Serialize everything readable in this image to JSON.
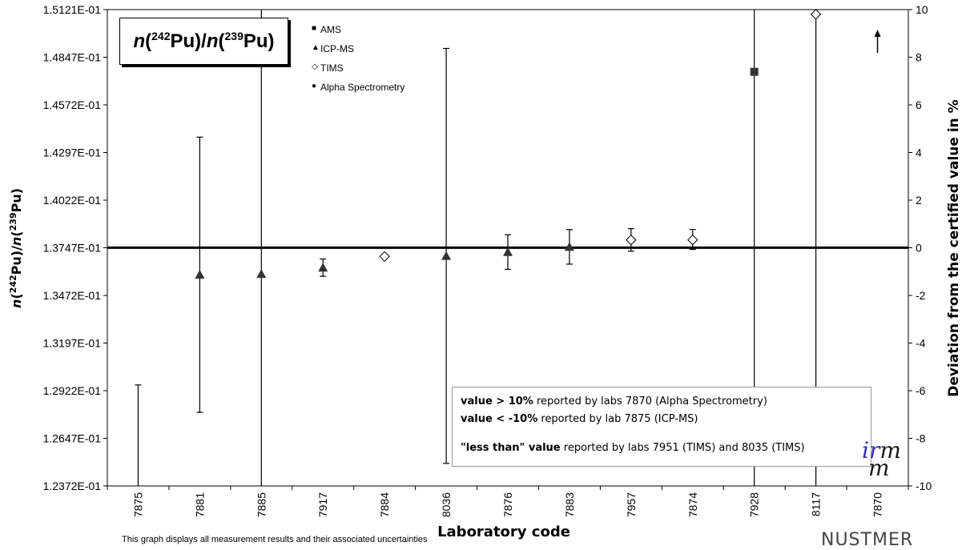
{
  "chart_data": {
    "type": "scatter",
    "title_parts": {
      "n1": "n",
      "o1": "(",
      "iso1": "242",
      "el1": "Pu)/",
      "n2": "n",
      "o2": "(",
      "iso2": "239",
      "el2": "Pu)"
    },
    "xlabel": "Laboratory code",
    "ylabel_left_parts": {
      "n1": "n",
      "o1": "(",
      "iso1": "242",
      "el1": "Pu)/",
      "n2": "n",
      "o2": "(",
      "iso2": "239",
      "el2": "Pu)"
    },
    "ylabel_right": "Deviation from the certified value in %",
    "y_left_ticks": [
      "1.2372E-01",
      "1.2647E-01",
      "1.2922E-01",
      "1.3197E-01",
      "1.3472E-01",
      "1.3747E-01",
      "1.4022E-01",
      "1.4297E-01",
      "1.4572E-01",
      "1.4847E-01",
      "1.5121E-01"
    ],
    "y_right_ticks": [
      "-10",
      "-8",
      "-6",
      "-4",
      "-2",
      "0",
      "2",
      "4",
      "6",
      "8",
      "10"
    ],
    "ylim_left": [
      0.12372,
      0.15121
    ],
    "ylim_right": [
      -10,
      10
    ],
    "reference_value": 0.13747,
    "categories": [
      "7875",
      "7881",
      "7885",
      "7917",
      "7884",
      "8036",
      "7876",
      "7883",
      "7957",
      "7874",
      "7928",
      "8117",
      "7870"
    ],
    "legend": [
      {
        "symbol": "■",
        "label": "AMS"
      },
      {
        "symbol": "▲",
        "label": "ICP-MS"
      },
      {
        "symbol": "◇",
        "label": "TIMS"
      },
      {
        "symbol": "●",
        "label": "Alpha Spectrometry"
      }
    ],
    "points": [
      {
        "lab": "7875",
        "method": "ICP-MS",
        "value": null,
        "upper": 0.12955,
        "lower": 0.12372
      },
      {
        "lab": "7881",
        "method": "ICP-MS",
        "value": 0.13592,
        "upper": 0.14385,
        "lower": 0.12797
      },
      {
        "lab": "7885",
        "method": "ICP-MS",
        "value": 0.13596,
        "upper": 0.15121,
        "lower": 0.12372
      },
      {
        "lab": "7917",
        "method": "ICP-MS",
        "value": 0.13632,
        "upper": 0.13682,
        "lower": 0.13582
      },
      {
        "lab": "7884",
        "method": "TIMS",
        "value": 0.13696,
        "upper": 0.13696,
        "lower": 0.13696
      },
      {
        "lab": "8036",
        "method": "ICP-MS",
        "value": 0.137,
        "upper": 0.14897,
        "lower": 0.12502
      },
      {
        "lab": "7876",
        "method": "ICP-MS",
        "value": 0.13722,
        "upper": 0.13822,
        "lower": 0.13622
      },
      {
        "lab": "7883",
        "method": "ICP-MS",
        "value": 0.13752,
        "upper": 0.13852,
        "lower": 0.13652
      },
      {
        "lab": "7957",
        "method": "TIMS",
        "value": 0.13792,
        "upper": 0.13857,
        "lower": 0.13727
      },
      {
        "lab": "7874",
        "method": "TIMS",
        "value": 0.13792,
        "upper": 0.13852,
        "lower": 0.13737
      },
      {
        "lab": "7928",
        "method": "AMS",
        "value": 0.14762,
        "upper": 0.15121,
        "lower": 0.12372
      },
      {
        "lab": "8117",
        "method": "TIMS",
        "value": 0.15094,
        "upper": 0.15121,
        "lower": 0.12372
      },
      {
        "lab": "7870",
        "method": "Alpha Spectrometry",
        "value": null,
        "arrow": "up"
      }
    ],
    "annotation": {
      "line1_bold": "value > 10%",
      "line1_rest": " reported by labs 7870 (Alpha Spectrometry)",
      "line2_bold": "value < -10%",
      "line2_rest": " reported by lab 7875 (ICP-MS)",
      "line3_bold": "\"less than\" value",
      "line3_rest": "  reported by labs 7951 (TIMS) and 8035 (TIMS)"
    },
    "note": "This graph displays all measurement results and their associated uncertainties",
    "logos": {
      "irmm_i": "i",
      "irmm_r": "r",
      "irmm_m1": "m",
      "irmm_m2": "m",
      "nustmer": "NUSTMER"
    }
  }
}
